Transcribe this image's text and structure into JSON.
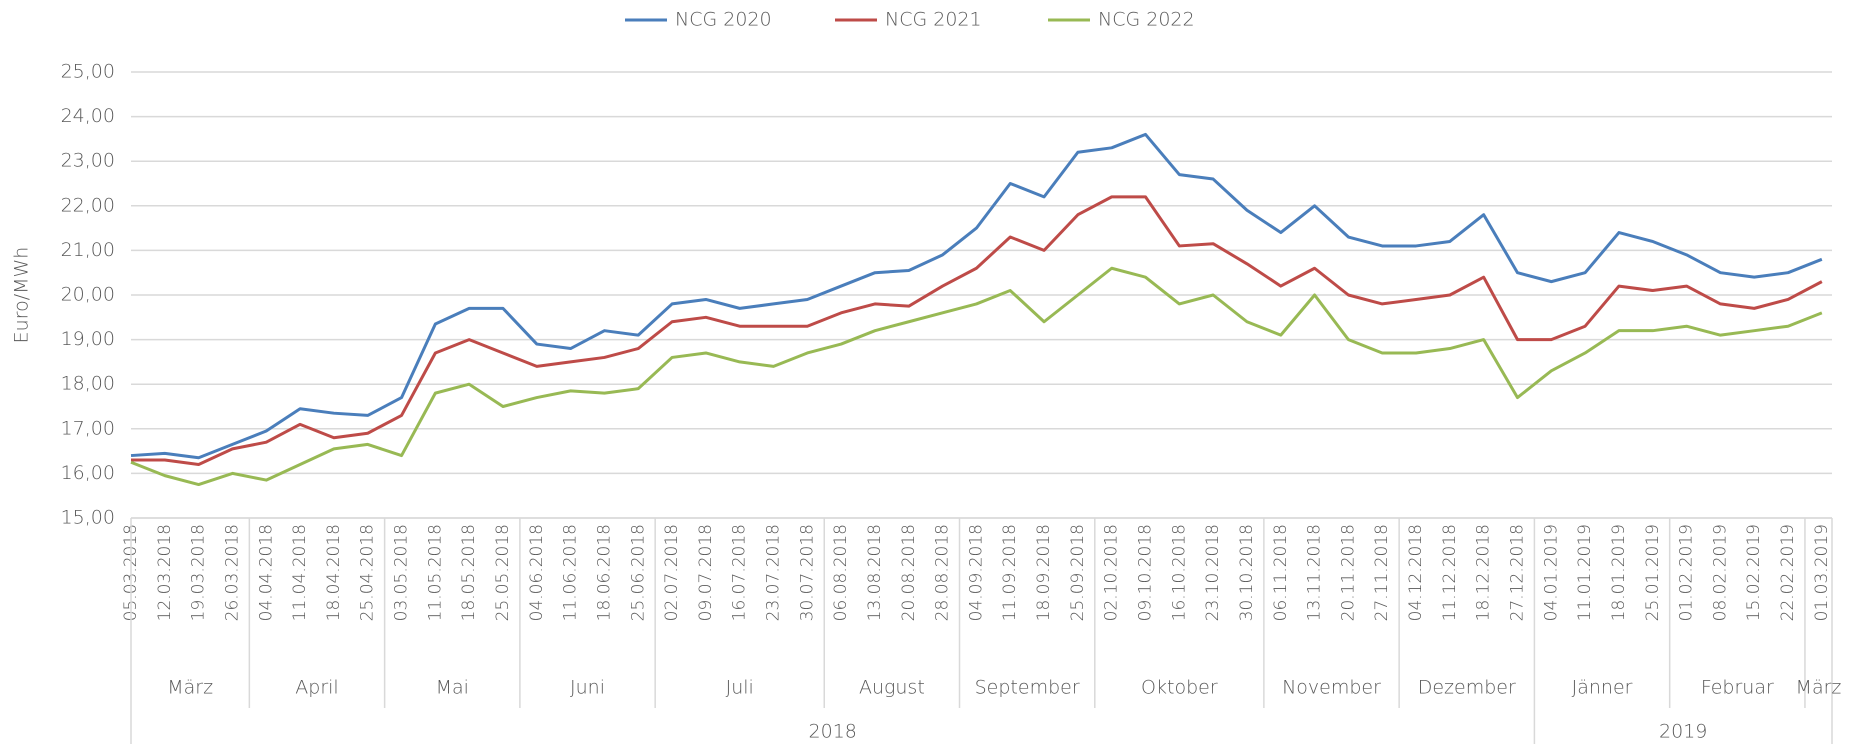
{
  "chart_data": {
    "type": "line",
    "y_axis_label": "Euro/MWh",
    "categories": [
      "05.03.2018",
      "12.03.2018",
      "19.03.2018",
      "26.03.2018",
      "04.04.2018",
      "11.04.2018",
      "18.04.2018",
      "25.04.2018",
      "03.05.2018",
      "11.05.2018",
      "18.05.2018",
      "25.05.2018",
      "04.06.2018",
      "11.06.2018",
      "18.06.2018",
      "25.06.2018",
      "02.07.2018",
      "09.07.2018",
      "16.07.2018",
      "23.07.2018",
      "30.07.2018",
      "06.08.2018",
      "13.08.2018",
      "20.08.2018",
      "28.08.2018",
      "04.09.2018",
      "11.09.2018",
      "18.09.2018",
      "25.09.2018",
      "02.10.2018",
      "09.10.2018",
      "16.10.2018",
      "23.10.2018",
      "30.10.2018",
      "06.11.2018",
      "13.11.2018",
      "20.11.2018",
      "27.11.2018",
      "04.12.2018",
      "11.12.2018",
      "18.12.2018",
      "27.12.2018",
      "04.01.2019",
      "11.01.2019",
      "18.01.2019",
      "25.01.2019",
      "01.02.2019",
      "08.02.2019",
      "15.02.2019",
      "22.02.2019",
      "01.03.2019"
    ],
    "months": [
      "März",
      "April",
      "Mai",
      "Juni",
      "Juli",
      "August",
      "September",
      "Oktober",
      "November",
      "Dezember",
      "Jänner",
      "Februar",
      "März"
    ],
    "years": [
      "2018",
      "2019"
    ],
    "series": [
      {
        "name": "NCG 2020",
        "color": "#4a7ebb",
        "values": [
          16.4,
          16.45,
          16.35,
          16.65,
          16.95,
          17.45,
          17.35,
          17.3,
          17.7,
          19.35,
          19.7,
          19.7,
          18.9,
          18.8,
          19.2,
          19.1,
          19.8,
          19.9,
          19.7,
          19.8,
          19.9,
          20.2,
          20.5,
          20.55,
          20.9,
          21.5,
          22.5,
          22.2,
          23.2,
          23.3,
          23.6,
          22.7,
          22.6,
          21.9,
          21.4,
          22.0,
          21.3,
          21.1,
          21.1,
          21.2,
          21.8,
          20.5,
          20.3,
          20.5,
          21.4,
          21.2,
          20.9,
          20.5,
          20.4,
          20.5,
          20.8
        ]
      },
      {
        "name": "NCG 2021",
        "color": "#be4b48",
        "values": [
          16.3,
          16.3,
          16.2,
          16.55,
          16.7,
          17.1,
          16.8,
          16.9,
          17.3,
          18.7,
          19.0,
          18.7,
          18.4,
          18.5,
          18.6,
          18.8,
          19.4,
          19.5,
          19.3,
          19.3,
          19.3,
          19.6,
          19.8,
          19.75,
          20.2,
          20.6,
          21.3,
          21.0,
          21.8,
          22.2,
          22.2,
          21.1,
          21.15,
          20.7,
          20.2,
          20.6,
          20.0,
          19.8,
          19.9,
          20.0,
          20.4,
          19.0,
          19.0,
          19.3,
          20.2,
          20.1,
          20.2,
          19.8,
          19.7,
          19.9,
          20.3
        ]
      },
      {
        "name": "NCG 2022",
        "color": "#98b954",
        "values": [
          16.25,
          15.95,
          15.75,
          16.0,
          15.85,
          16.2,
          16.55,
          16.65,
          16.4,
          17.8,
          18.0,
          17.5,
          17.7,
          17.85,
          17.8,
          17.9,
          18.6,
          18.7,
          18.5,
          18.4,
          18.7,
          18.9,
          19.2,
          19.4,
          19.6,
          19.8,
          20.1,
          19.4,
          20.0,
          20.6,
          20.4,
          19.8,
          20.0,
          19.4,
          19.1,
          20.0,
          19.0,
          18.7,
          18.7,
          18.8,
          19.0,
          17.7,
          18.3,
          18.7,
          19.2,
          19.2,
          19.3,
          19.1,
          19.2,
          19.3,
          19.6
        ]
      }
    ],
    "ylim": [
      15,
      25
    ],
    "yticks": [
      {
        "value": 15,
        "label": "15,00"
      },
      {
        "value": 16,
        "label": "16,00"
      },
      {
        "value": 17,
        "label": "17,00"
      },
      {
        "value": 18,
        "label": "18,00"
      },
      {
        "value": 19,
        "label": "19,00"
      },
      {
        "value": 20,
        "label": "20,00"
      },
      {
        "value": 21,
        "label": "21,00"
      },
      {
        "value": 22,
        "label": "22,00"
      },
      {
        "value": 23,
        "label": "23,00"
      },
      {
        "value": 24,
        "label": "24,00"
      },
      {
        "value": 25,
        "label": "25,00"
      }
    ],
    "grid": true,
    "legend": "top"
  }
}
